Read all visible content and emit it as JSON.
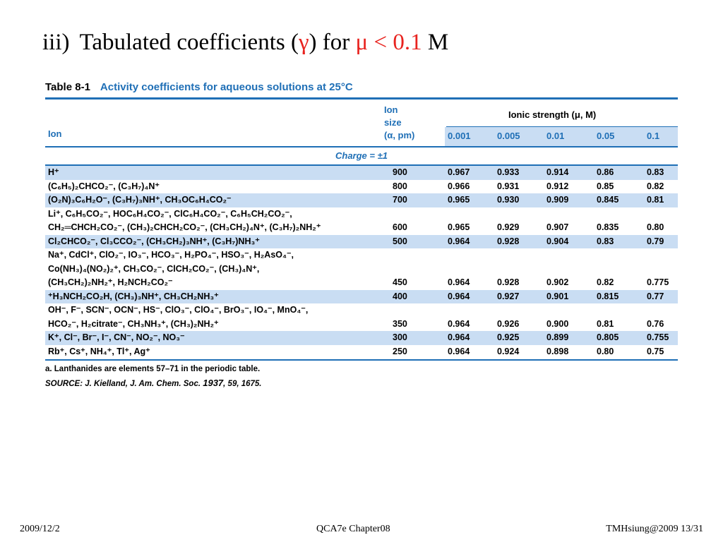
{
  "slide": {
    "number": "iii)",
    "title_lead": "Tabulated coefficients (",
    "gamma": "γ",
    "title_mid": ") for ",
    "condition": "μ < 0.1",
    "unit": " M"
  },
  "table": {
    "tag": "Table 8-1",
    "title": "Activity coefficients for aqueous solutions at 25°C",
    "header": {
      "ion": "Ion",
      "size_lines": [
        "Ion",
        "size",
        "(α, pm)"
      ],
      "ionic_strength": "Ionic strength (μ, M)",
      "concentrations": [
        "0.001",
        "0.005",
        "0.01",
        "0.05",
        "0.1"
      ]
    },
    "charge_label": "Charge = ±1",
    "rows": [
      {
        "ions": [
          "H⁺"
        ],
        "size": "900",
        "values": [
          "0.967",
          "0.933",
          "0.914",
          "0.86",
          "0.83"
        ]
      },
      {
        "ions": [
          "(C₆H₅)₂CHCO₂⁻, (C₃H₇)₄N⁺"
        ],
        "size": "800",
        "values": [
          "0.966",
          "0.931",
          "0.912",
          "0.85",
          "0.82"
        ]
      },
      {
        "ions": [
          "(O₂N)₃C₆H₂O⁻, (C₃H₇)₃NH⁺, CH₃OC₆H₄CO₂⁻"
        ],
        "size": "700",
        "values": [
          "0.965",
          "0.930",
          "0.909",
          "0.845",
          "0.81"
        ]
      },
      {
        "ions": [
          "Li⁺, C₆H₅CO₂⁻, HOC₆H₄CO₂⁻, ClC₆H₄CO₂⁻, C₆H₅CH₂CO₂⁻,",
          "CH₂═CHCH₂CO₂⁻, (CH₃)₂CHCH₂CO₂⁻, (CH₃CH₂)₄N⁺, (C₃H₇)₂NH₂⁺"
        ],
        "size": "600",
        "values": [
          "0.965",
          "0.929",
          "0.907",
          "0.835",
          "0.80"
        ]
      },
      {
        "ions": [
          "Cl₂CHCO₂⁻, Cl₃CCO₂⁻, (CH₃CH₂)₃NH⁺, (C₃H₇)NH₃⁺"
        ],
        "size": "500",
        "values": [
          "0.964",
          "0.928",
          "0.904",
          "0.83",
          "0.79"
        ]
      },
      {
        "ions": [
          "Na⁺, CdCl⁺, ClO₂⁻, IO₃⁻, HCO₃⁻, H₂PO₄⁻, HSO₃⁻, H₂AsO₄⁻,",
          "Co(NH₃)₄(NO₂)₂⁺, CH₃CO₂⁻, ClCH₂CO₂⁻, (CH₃)₄N⁺,",
          "(CH₃CH₂)₂NH₂⁺, H₂NCH₂CO₂⁻"
        ],
        "size": "450",
        "values": [
          "0.964",
          "0.928",
          "0.902",
          "0.82",
          "0.775"
        ]
      },
      {
        "ions": [
          "⁺H₃NCH₂CO₂H, (CH₃)₃NH⁺, CH₃CH₂NH₃⁺"
        ],
        "size": "400",
        "values": [
          "0.964",
          "0.927",
          "0.901",
          "0.815",
          "0.77"
        ]
      },
      {
        "ions": [
          "OH⁻, F⁻, SCN⁻, OCN⁻, HS⁻, ClO₃⁻, ClO₄⁻, BrO₃⁻, IO₄⁻, MnO₄⁻,",
          "HCO₂⁻, H₂citrate⁻, CH₃NH₃⁺, (CH₃)₂NH₂⁺"
        ],
        "size": "350",
        "values": [
          "0.964",
          "0.926",
          "0.900",
          "0.81",
          "0.76"
        ]
      },
      {
        "ions": [
          "K⁺, Cl⁻, Br⁻, I⁻, CN⁻, NO₂⁻, NO₃⁻"
        ],
        "size": "300",
        "values": [
          "0.964",
          "0.925",
          "0.899",
          "0.805",
          "0.755"
        ]
      },
      {
        "ions": [
          "Rb⁺, Cs⁺, NH₄⁺, Tl⁺, Ag⁺"
        ],
        "size": "250",
        "values": [
          "0.964",
          "0.924",
          "0.898",
          "0.80",
          "0.75"
        ]
      }
    ],
    "notes": {
      "footnote": "a. Lanthanides are elements 57–71 in the periodic table.",
      "source_prefix": "SOURCE: J. Kielland, J. Am. Chem. Soc. ",
      "source_year": "1937",
      "source_suffix": ", 59, 1675."
    }
  },
  "footer": {
    "date": "2009/12/2",
    "course": "QCA7e Chapter08",
    "credit": "TMHsiung@2009 13/31"
  },
  "colors": {
    "accent_blue": "#1f6fb6",
    "band_blue": "#c9ddf3",
    "title_red": "#e8231f"
  }
}
